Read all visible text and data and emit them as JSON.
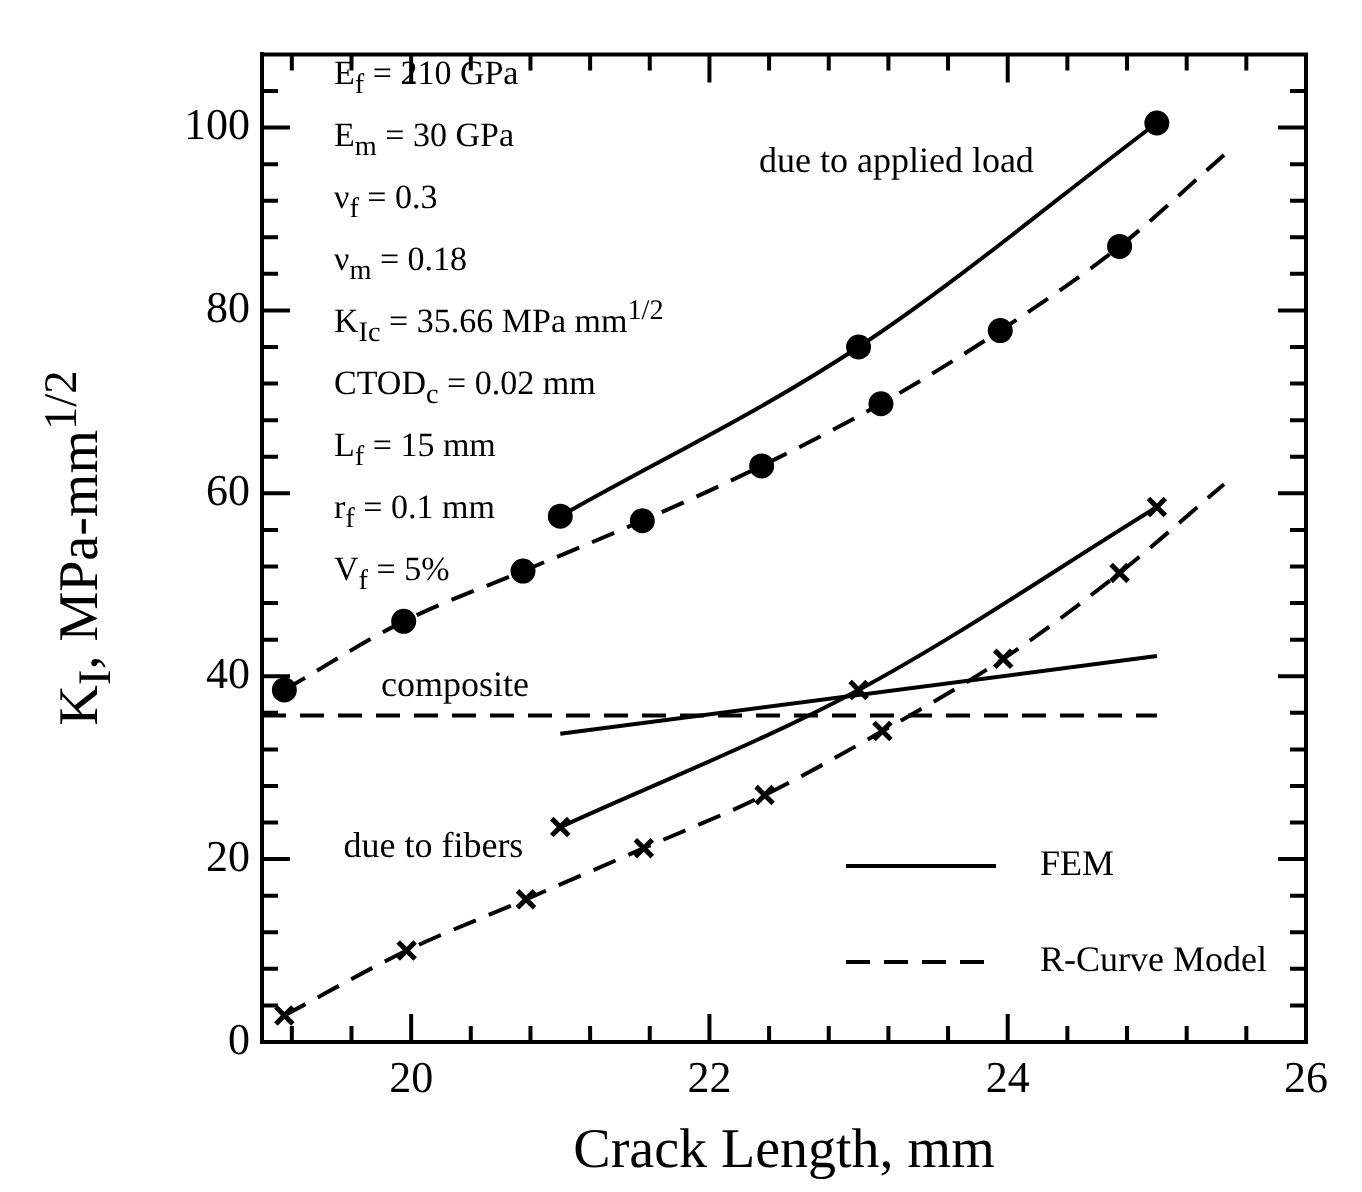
{
  "chart_data": {
    "type": "line",
    "xlabel": "Crack Length, mm",
    "ylabel": "K$_{I}$, MPa-mm$^{1/2}$",
    "xlim": [
      19,
      26
    ],
    "ylim": [
      0,
      108
    ],
    "xticks": [
      {
        "value": 19.2,
        "label": null
      },
      {
        "value": 19.6,
        "label": null
      },
      20,
      {
        "value": 20.4,
        "label": null
      },
      {
        "value": 20.8,
        "label": null
      },
      {
        "value": 21.2,
        "label": null
      },
      {
        "value": 21.6,
        "label": null
      },
      22,
      {
        "value": 22.4,
        "label": null
      },
      {
        "value": 22.8,
        "label": null
      },
      {
        "value": 23.2,
        "label": null
      },
      {
        "value": 23.6,
        "label": null
      },
      24,
      {
        "value": 24.4,
        "label": null
      },
      {
        "value": 24.8,
        "label": null
      },
      {
        "value": 25.2,
        "label": null
      },
      {
        "value": 25.6,
        "label": null
      },
      26
    ],
    "yticks": [
      0,
      {
        "value": 4,
        "label": null
      },
      {
        "value": 8,
        "label": null
      },
      {
        "value": 12,
        "label": null
      },
      {
        "value": 16,
        "label": null
      },
      20,
      {
        "value": 24,
        "label": null
      },
      {
        "value": 28,
        "label": null
      },
      {
        "value": 32,
        "label": null
      },
      {
        "value": 36,
        "label": null
      },
      40,
      {
        "value": 44,
        "label": null
      },
      {
        "value": 48,
        "label": null
      },
      {
        "value": 52,
        "label": null
      },
      {
        "value": 56,
        "label": null
      },
      60,
      {
        "value": 64,
        "label": null
      },
      {
        "value": 68,
        "label": null
      },
      {
        "value": 72,
        "label": null
      },
      {
        "value": 76,
        "label": null
      },
      80,
      {
        "value": 84,
        "label": null
      },
      {
        "value": 88,
        "label": null
      },
      {
        "value": 92,
        "label": null
      },
      {
        "value": 96,
        "label": null
      },
      100,
      {
        "value": 104,
        "label": null
      }
    ],
    "grid": false,
    "legend": "bottom right",
    "series": [
      {
        "name": "FEM",
        "type": "line",
        "x": [
          21,
          23,
          25
        ],
        "values": [
          57.5,
          76,
          100.5
        ],
        "color": "#000000",
        "marker": "circle",
        "line_style": "solid"
      },
      {
        "type": "line",
        "x": [
          21,
          23,
          25
        ],
        "values": [
          23.5,
          38.5,
          58.5
        ],
        "color": "#000000",
        "marker": "cross",
        "line_style": "solid"
      },
      {
        "type": "line",
        "x": [
          21,
          25
        ],
        "values": [
          33.7,
          42.2
        ],
        "color": "#000000",
        "marker": "none",
        "line_style": "solid"
      },
      {
        "name": "R-Curve Model",
        "type": "line",
        "x": [
          19.15,
          19.95,
          20.75,
          21.55,
          22.35,
          23.15,
          23.95,
          24.75,
          25.45
        ],
        "values": [
          38.5,
          46,
          51.5,
          57,
          63,
          69.8,
          77.8,
          87,
          97
        ],
        "color": "#000000",
        "marker": "none",
        "line_style": "dashed"
      },
      {
        "type": "scatter",
        "x": [
          19.15,
          19.95,
          20.75,
          21.55,
          22.35,
          23.15,
          23.95,
          24.75
        ],
        "values": [
          38.5,
          46,
          51.5,
          57,
          63,
          69.8,
          77.8,
          87
        ],
        "color": "#000000",
        "marker": "circle"
      },
      {
        "type": "line",
        "x": [
          19.15,
          19.97,
          20.77,
          21.56,
          22.37,
          23.16,
          23.97,
          24.75,
          25.45
        ],
        "values": [
          2.9,
          10,
          15.6,
          21.2,
          27,
          34,
          41.9,
          51.3,
          61
        ],
        "color": "#000000",
        "marker": "none",
        "line_style": "dashed"
      },
      {
        "type": "scatter",
        "x": [
          19.15,
          19.97,
          20.77,
          21.56,
          22.37,
          23.16,
          23.97,
          24.75
        ],
        "values": [
          2.9,
          10,
          15.6,
          21.2,
          27,
          34,
          41.9,
          51.3
        ],
        "color": "#000000",
        "marker": "cross"
      },
      {
        "type": "line",
        "x": [
          19,
          25
        ],
        "values": [
          35.7,
          35.7
        ],
        "color": "#000000",
        "marker": "none",
        "line_style": "dashed"
      }
    ],
    "annotations": [
      "E$_{f}$ = 210 GPa",
      "E$_{m}$ = 30 GPa",
      "ν$_{f}$ = 0.3",
      "ν$_{m}$ = 0.18",
      "K$_{Ic}$ = 35.66 MPa mm$^{1/2}$",
      "CTOD$_{c}$ = 0.02 mm",
      "L$_{f}$ = 15 mm",
      "r$_{f}$ = 0.1 mm",
      "V$_{f}$ = 5%",
      "due to applied load",
      "composite",
      "due to fibers"
    ]
  }
}
